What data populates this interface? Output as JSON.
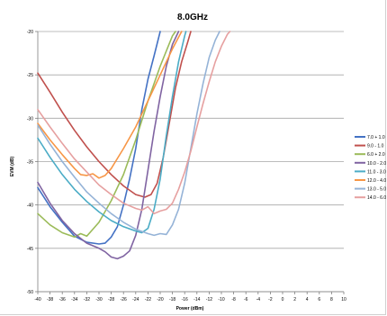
{
  "chart_data": {
    "type": "line",
    "title": "8.0GHz",
    "xlabel": "Power (dBm)",
    "ylabel": "EVM (dB)",
    "xlim": [
      -40,
      10
    ],
    "ylim": [
      -50,
      -20
    ],
    "x_ticks": [
      -40,
      -38,
      -36,
      -34,
      -32,
      -30,
      -28,
      -26,
      -24,
      -22,
      -20,
      -18,
      -16,
      -14,
      -12,
      -10,
      -8,
      -6,
      -4,
      -2,
      0,
      2,
      4,
      6,
      8,
      10
    ],
    "x_tick_labels": [
      "-40",
      "-38",
      "-36",
      "-34",
      "-32",
      "-30",
      "-28",
      "-26",
      "-24",
      "-22",
      "-20",
      "-18",
      "-16",
      "-14",
      "-12",
      "-10",
      "-8",
      "-6",
      "-4",
      "-2",
      "0",
      "2",
      "4",
      "6",
      "8",
      "10"
    ],
    "y_ticks": [
      -50,
      -45,
      -40,
      -35,
      -30,
      -25,
      -20
    ],
    "y_tick_labels": [
      "-50",
      "-45",
      "-40",
      "-35",
      "-30",
      "-25",
      "-20"
    ],
    "grid": "horizontal",
    "legend_position": "right",
    "series": [
      {
        "name": "7.0 + 1.0",
        "color": "#4472c4",
        "points": [
          [
            -40,
            -38
          ],
          [
            -38,
            -40.2
          ],
          [
            -36,
            -42
          ],
          [
            -34,
            -43.6
          ],
          [
            -32,
            -44.3
          ],
          [
            -30,
            -44.5
          ],
          [
            -29,
            -44.4
          ],
          [
            -28,
            -43.7
          ],
          [
            -27,
            -42.5
          ],
          [
            -26,
            -40
          ],
          [
            -25,
            -37
          ],
          [
            -24,
            -33.5
          ],
          [
            -23,
            -29
          ],
          [
            -22,
            -25.5
          ],
          [
            -21,
            -22.8
          ],
          [
            -20,
            -20
          ]
        ]
      },
      {
        "name": "9.0 - 1.0",
        "color": "#c0504d",
        "points": [
          [
            -40,
            -24.8
          ],
          [
            -38,
            -27
          ],
          [
            -36,
            -29.3
          ],
          [
            -34,
            -31.4
          ],
          [
            -32,
            -33.3
          ],
          [
            -30,
            -35
          ],
          [
            -28,
            -36.5
          ],
          [
            -26,
            -37.8
          ],
          [
            -24,
            -38.8
          ],
          [
            -22.5,
            -39.1
          ],
          [
            -21.5,
            -38.8
          ],
          [
            -20.5,
            -37.5
          ],
          [
            -19.5,
            -34.5
          ],
          [
            -18.5,
            -30.5
          ],
          [
            -17.5,
            -26.5
          ],
          [
            -16.5,
            -23.5
          ],
          [
            -15.5,
            -21.2
          ],
          [
            -15,
            -20
          ]
        ]
      },
      {
        "name": "6.0 + 2.0",
        "color": "#9bbb59",
        "points": [
          [
            -40,
            -41
          ],
          [
            -38,
            -42.3
          ],
          [
            -36,
            -43.2
          ],
          [
            -34,
            -43.7
          ],
          [
            -33,
            -43.3
          ],
          [
            -32,
            -43.6
          ],
          [
            -31,
            -42.8
          ],
          [
            -30,
            -42
          ],
          [
            -28,
            -39.5
          ],
          [
            -26,
            -36.5
          ],
          [
            -24,
            -32.5
          ],
          [
            -22,
            -28
          ],
          [
            -20,
            -24
          ],
          [
            -18,
            -20.5
          ],
          [
            -17.5,
            -20
          ]
        ]
      },
      {
        "name": "10.0 - 2.0",
        "color": "#8064a2",
        "points": [
          [
            -40,
            -37.4
          ],
          [
            -38,
            -39.8
          ],
          [
            -36,
            -41.8
          ],
          [
            -34,
            -43.3
          ],
          [
            -32,
            -44.4
          ],
          [
            -30,
            -45
          ],
          [
            -29,
            -45.4
          ],
          [
            -28,
            -46
          ],
          [
            -27,
            -46.2
          ],
          [
            -26,
            -45.9
          ],
          [
            -25,
            -45.3
          ],
          [
            -24,
            -43.5
          ],
          [
            -23,
            -40.5
          ],
          [
            -22,
            -36
          ],
          [
            -21,
            -31.5
          ],
          [
            -20,
            -27.5
          ],
          [
            -19,
            -24
          ],
          [
            -18,
            -21.5
          ],
          [
            -17,
            -20
          ]
        ]
      },
      {
        "name": "11.0 - 3.0",
        "color": "#4bacc6",
        "points": [
          [
            -40,
            -32.3
          ],
          [
            -38,
            -34.5
          ],
          [
            -36,
            -36.5
          ],
          [
            -34,
            -38.2
          ],
          [
            -32,
            -39.6
          ],
          [
            -30,
            -40.8
          ],
          [
            -28,
            -41.8
          ],
          [
            -26,
            -42.5
          ],
          [
            -24,
            -43
          ],
          [
            -23,
            -43.2
          ],
          [
            -22,
            -42.7
          ],
          [
            -21,
            -40.5
          ],
          [
            -20,
            -37
          ],
          [
            -19,
            -32
          ],
          [
            -18,
            -27.5
          ],
          [
            -17,
            -23.5
          ],
          [
            -16,
            -20.5
          ],
          [
            -15.8,
            -20
          ]
        ]
      },
      {
        "name": "12.0 - 4.0",
        "color": "#f79646",
        "points": [
          [
            -40,
            -30.6
          ],
          [
            -38,
            -32.5
          ],
          [
            -36,
            -34.2
          ],
          [
            -34,
            -35.8
          ],
          [
            -33,
            -36.5
          ],
          [
            -32,
            -36.6
          ],
          [
            -31,
            -36.4
          ],
          [
            -30,
            -36.9
          ],
          [
            -29,
            -36.6
          ],
          [
            -28,
            -35.8
          ],
          [
            -26,
            -33.5
          ],
          [
            -24,
            -31
          ],
          [
            -22,
            -28
          ],
          [
            -20,
            -25
          ],
          [
            -18,
            -22
          ],
          [
            -16.5,
            -20
          ]
        ]
      },
      {
        "name": "13.0 - 5.0",
        "color": "#95b3d7",
        "points": [
          [
            -40,
            -30.8
          ],
          [
            -38,
            -33
          ],
          [
            -36,
            -35
          ],
          [
            -34,
            -36.8
          ],
          [
            -32,
            -38.5
          ],
          [
            -30,
            -39.8
          ],
          [
            -28,
            -41
          ],
          [
            -26,
            -42
          ],
          [
            -24,
            -42.8
          ],
          [
            -22,
            -43.3
          ],
          [
            -21,
            -43.5
          ],
          [
            -20,
            -43.3
          ],
          [
            -19,
            -43.4
          ],
          [
            -18,
            -42.3
          ],
          [
            -17,
            -40.5
          ],
          [
            -16,
            -37.5
          ],
          [
            -15,
            -33.5
          ],
          [
            -14,
            -29.5
          ],
          [
            -13,
            -26
          ],
          [
            -12,
            -23
          ],
          [
            -11,
            -21
          ],
          [
            -10.3,
            -20
          ]
        ]
      },
      {
        "name": "14.0 - 6.0",
        "color": "#e6a0a0",
        "points": [
          [
            -40,
            -29
          ],
          [
            -38,
            -31
          ],
          [
            -36,
            -32.9
          ],
          [
            -34,
            -34.7
          ],
          [
            -32,
            -36.2
          ],
          [
            -30,
            -37.7
          ],
          [
            -28,
            -38.8
          ],
          [
            -26,
            -39.8
          ],
          [
            -24,
            -40.4
          ],
          [
            -23,
            -40.6
          ],
          [
            -22,
            -40.2
          ],
          [
            -21,
            -41
          ],
          [
            -20,
            -40.7
          ],
          [
            -19,
            -40.5
          ],
          [
            -18,
            -39.8
          ],
          [
            -17,
            -38.2
          ],
          [
            -16,
            -36.2
          ],
          [
            -15,
            -33.8
          ],
          [
            -14,
            -31
          ],
          [
            -13,
            -28.3
          ],
          [
            -12,
            -25.8
          ],
          [
            -11,
            -23.5
          ],
          [
            -10,
            -21.7
          ],
          [
            -9,
            -20.3
          ],
          [
            -8.6,
            -20
          ]
        ]
      }
    ]
  }
}
